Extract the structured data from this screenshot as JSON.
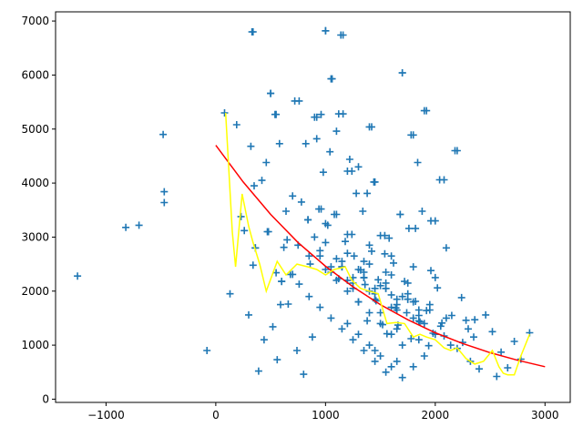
{
  "chart_data": {
    "type": "scatter",
    "title": "",
    "xlabel": "",
    "ylabel": "",
    "xlim": [
      -1460,
      3230
    ],
    "ylim": [
      -60,
      7170
    ],
    "x_ticks": [
      -1000,
      0,
      1000,
      2000,
      3000
    ],
    "y_ticks": [
      0,
      1000,
      2000,
      3000,
      4000,
      5000,
      6000,
      7000
    ],
    "grid": false,
    "legend": "none",
    "colors": {
      "points": "#1f77b4",
      "fit": "#ff0000",
      "smooth": "#ffff00"
    },
    "series": [
      {
        "type": "scatter",
        "marker": "+",
        "x": [
          -1260,
          -820,
          -700,
          -480,
          -470,
          -470,
          -80,
          80,
          130,
          190,
          230,
          260,
          300,
          320,
          330,
          340,
          350,
          360,
          390,
          420,
          440,
          460,
          480,
          500,
          520,
          540,
          550,
          560,
          580,
          590,
          600,
          620,
          640,
          660,
          680,
          700,
          720,
          740,
          760,
          780,
          800,
          820,
          840,
          860,
          880,
          900,
          920,
          940,
          960,
          980,
          1000,
          1020,
          1040,
          1060,
          1080,
          1100,
          1120,
          1140,
          1160,
          1180,
          1200,
          1220,
          1240,
          1260,
          1280,
          1300,
          1320,
          1340,
          1360,
          1380,
          1400,
          1420,
          1440,
          1460,
          1480,
          1500,
          1520,
          1540,
          1560,
          1580,
          1600,
          1620,
          1640,
          1660,
          1680,
          1700,
          1720,
          1740,
          1760,
          1780,
          1800,
          1820,
          1840,
          1860,
          1880,
          1900,
          1920,
          1940,
          1960,
          1980,
          2000,
          2020,
          2040,
          2060,
          2080,
          2100,
          2140,
          2180,
          2200,
          2240,
          2280,
          2320,
          2360,
          2400,
          2460,
          2520,
          2560,
          2600,
          2660,
          2720,
          2780,
          2860,
          340,
          1000,
          1160,
          1700,
          1920,
          1050,
          1420,
          500,
          550,
          760,
          920,
          1120,
          1450,
          1780,
          2200,
          2080,
          1960,
          1820,
          1680,
          1540,
          1380,
          1240,
          1100,
          960,
          840,
          700,
          600,
          470,
          360,
          1300,
          1500,
          1650,
          1850,
          1200,
          1400,
          1600,
          1800,
          2000,
          1100,
          1300,
          1500,
          1700,
          1900,
          900,
          1000,
          1200,
          1400,
          1600,
          1800,
          2100,
          2300,
          1150,
          1350,
          1550,
          1750,
          1950,
          1250,
          1450,
          1650,
          1850,
          2050,
          1050,
          1250,
          1450,
          1650,
          1850,
          1350,
          1550,
          1750,
          950,
          1150,
          1350,
          1550,
          1750,
          1950,
          2150,
          1000,
          1200,
          1400,
          1600,
          1800,
          2000,
          850,
          1050,
          1250,
          1450,
          1650,
          1850,
          2250,
          750,
          950,
          1150,
          1350,
          1550,
          1750,
          2350,
          650,
          1450,
          1650,
          1550,
          1450,
          1350,
          1250,
          1150,
          1050,
          950,
          850,
          1700,
          1600,
          1500,
          1400,
          1300,
          1200,
          1100,
          1000,
          1900,
          1800,
          1700,
          1600,
          1500,
          1400,
          1300,
          1200
        ],
        "y": [
          2280,
          3180,
          3220,
          4900,
          3840,
          3640,
          900,
          5300,
          1950,
          5080,
          3380,
          3120,
          1560,
          4680,
          6800,
          2480,
          3950,
          2800,
          520,
          4050,
          1100,
          4380,
          3100,
          5660,
          1340,
          5270,
          2340,
          730,
          4730,
          1750,
          2180,
          2810,
          3480,
          1760,
          2310,
          3760,
          5520,
          900,
          2130,
          3650,
          460,
          4730,
          3320,
          2500,
          1150,
          5220,
          4820,
          3520,
          5270,
          4200,
          6820,
          3220,
          4580,
          5930,
          3420,
          4960,
          2230,
          6740,
          5280,
          2920,
          4220,
          4440,
          3050,
          2650,
          3810,
          4300,
          2390,
          3480,
          2120,
          1450,
          5040,
          2740,
          4020,
          1820,
          2210,
          3030,
          1380,
          2690,
          1210,
          2980,
          1930,
          2520,
          1690,
          1370,
          3420,
          6040,
          2180,
          1600,
          3160,
          1120,
          4890,
          1810,
          4380,
          1430,
          3480,
          5340,
          1640,
          990,
          2380,
          1220,
          3300,
          2060,
          4060,
          1410,
          1170,
          2800,
          1000,
          4600,
          940,
          1880,
          1460,
          700,
          1470,
          560,
          1560,
          1250,
          420,
          870,
          580,
          1070,
          740,
          1230,
          6800,
          6820,
          6740,
          6040,
          5340,
          5930,
          5040,
          5660,
          5270,
          5520,
          5220,
          5280,
          4020,
          4890,
          4600,
          4060,
          3300,
          3160,
          3420,
          3030,
          3810,
          4220,
          3420,
          3520,
          3320,
          2310,
          2180,
          3100,
          2800,
          1800,
          1600,
          1300,
          1100,
          2200,
          2000,
          1700,
          1500,
          1200,
          2600,
          2400,
          2100,
          1900,
          1400,
          3000,
          2900,
          2700,
          2500,
          2300,
          1800,
          1500,
          1300,
          2450,
          2250,
          2050,
          1850,
          1650,
          2150,
          1950,
          1750,
          1550,
          1350,
          2350,
          2050,
          1850,
          1650,
          1450,
          2550,
          2350,
          2150,
          2750,
          2550,
          2350,
          2150,
          1950,
          1750,
          1550,
          3250,
          3050,
          2850,
          2650,
          2450,
          2250,
          2650,
          2450,
          2250,
          2050,
          1850,
          1650,
          1050,
          2850,
          2650,
          2450,
          2250,
          2050,
          1850,
          1150,
          2950,
          900,
          700,
          500,
          700,
          900,
          1100,
          1300,
          1500,
          1700,
          1900,
          1000,
          1200,
          1400,
          1600,
          1800,
          2000,
          2200,
          2400,
          800,
          600,
          400,
          600,
          800,
          1000,
          1200,
          1400
        ]
      },
      {
        "type": "line",
        "role": "fit",
        "x": [
          0,
          250,
          500,
          750,
          1000,
          1250,
          1500,
          1750,
          2000,
          2250,
          2500,
          2750,
          3000
        ],
        "y": [
          4700,
          4020,
          3420,
          2900,
          2460,
          2080,
          1750,
          1470,
          1230,
          1030,
          860,
          720,
          600
        ]
      },
      {
        "type": "line",
        "role": "smooth",
        "x": [
          90,
          150,
          180,
          240,
          300,
          340,
          400,
          460,
          560,
          640,
          740,
          840,
          920,
          1000,
          1080,
          1180,
          1240,
          1320,
          1400,
          1480,
          1560,
          1640,
          1720,
          1800,
          1860,
          1920,
          2000,
          2080,
          2140,
          2200,
          2280,
          2360,
          2440,
          2520,
          2580,
          2620,
          2660,
          2720,
          2780,
          2860
        ],
        "y": [
          5300,
          3100,
          2450,
          3800,
          3200,
          2900,
          2500,
          2000,
          2550,
          2300,
          2500,
          2450,
          2400,
          2300,
          2400,
          2450,
          2200,
          2050,
          2000,
          1950,
          1400,
          1420,
          1400,
          1150,
          1200,
          1150,
          1100,
          950,
          900,
          950,
          750,
          650,
          700,
          900,
          600,
          480,
          450,
          450,
          800,
          1200
        ]
      }
    ]
  }
}
